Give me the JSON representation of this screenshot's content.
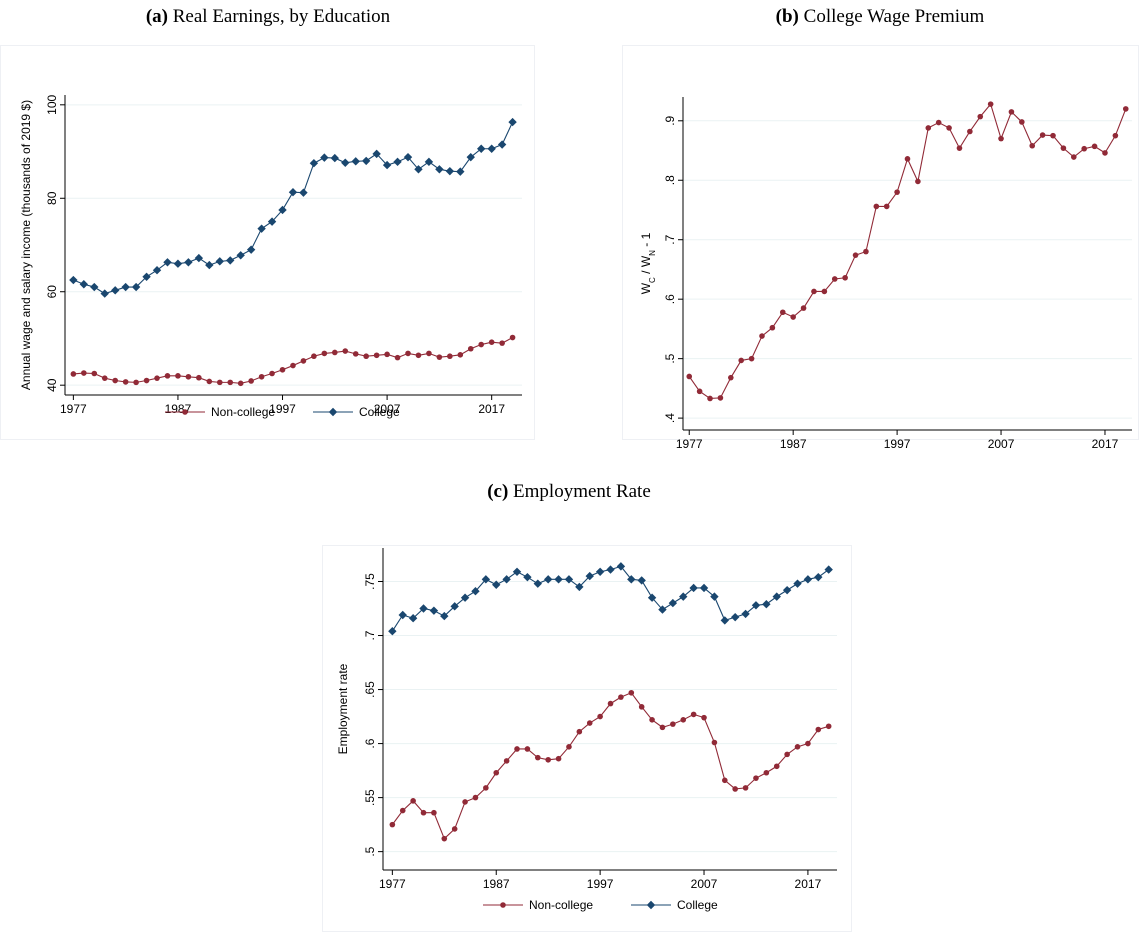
{
  "chart_data": [
    {
      "type": "line",
      "label": "(a)",
      "title": "Real Earnings, by Education",
      "ylabel": [
        "Annual wage and salary income (thousands of 2019 $)"
      ],
      "x": [
        1977,
        1978,
        1979,
        1980,
        1981,
        1982,
        1983,
        1984,
        1985,
        1986,
        1987,
        1988,
        1989,
        1990,
        1991,
        1992,
        1993,
        1994,
        1995,
        1996,
        1997,
        1998,
        1999,
        2000,
        2001,
        2002,
        2003,
        2004,
        2005,
        2006,
        2007,
        2008,
        2009,
        2010,
        2011,
        2012,
        2013,
        2014,
        2015,
        2016,
        2017,
        2018,
        2019
      ],
      "xlim": [
        1976.2,
        2019.9
      ],
      "xticks": [
        1977,
        1987,
        1997,
        2007,
        2017
      ],
      "ylim": [
        37.9,
        102.1
      ],
      "yticks": [
        40,
        60,
        80,
        100
      ],
      "grid": true,
      "legend": "bottom",
      "series": [
        {
          "name": "Non-college",
          "color": "#912a37",
          "marker": "circle",
          "values": [
            42.4,
            42.6,
            42.5,
            41.5,
            41.0,
            40.7,
            40.6,
            41.0,
            41.5,
            42.0,
            42.0,
            41.8,
            41.6,
            40.8,
            40.6,
            40.6,
            40.4,
            40.9,
            41.8,
            42.5,
            43.3,
            44.2,
            45.2,
            46.2,
            46.8,
            47.0,
            47.3,
            46.7,
            46.2,
            46.4,
            46.6,
            45.9,
            46.8,
            46.4,
            46.8,
            46.0,
            46.2,
            46.5,
            47.8,
            48.7,
            49.2,
            49.0,
            50.2
          ]
        },
        {
          "name": "College",
          "color": "#1a476f",
          "marker": "diamond",
          "values": [
            62.5,
            61.6,
            61.0,
            59.6,
            60.3,
            61.0,
            61.0,
            63.2,
            64.6,
            66.3,
            66.0,
            66.3,
            67.2,
            65.7,
            66.5,
            66.7,
            67.8,
            69.0,
            73.5,
            75.0,
            77.5,
            81.3,
            81.2,
            87.5,
            88.7,
            88.6,
            87.6,
            87.9,
            88.0,
            89.5,
            87.1,
            87.8,
            88.8,
            86.2,
            87.8,
            86.2,
            85.8,
            85.7,
            88.8,
            90.6,
            90.6,
            91.5,
            96.3
          ]
        }
      ]
    },
    {
      "type": "line",
      "label": "(b)",
      "title": "College Wage Premium",
      "ylabel": [
        "W",
        "C",
        " / W",
        "N",
        " - 1"
      ],
      "x": [
        1977,
        1978,
        1979,
        1980,
        1981,
        1982,
        1983,
        1984,
        1985,
        1986,
        1987,
        1988,
        1989,
        1990,
        1991,
        1992,
        1993,
        1994,
        1995,
        1996,
        1997,
        1998,
        1999,
        2000,
        2001,
        2002,
        2003,
        2004,
        2005,
        2006,
        2007,
        2008,
        2009,
        2010,
        2011,
        2012,
        2013,
        2014,
        2015,
        2016,
        2017,
        2018,
        2019
      ],
      "xlim": [
        1976.4,
        2019.6
      ],
      "xticks": [
        1977,
        1987,
        1997,
        2007,
        2017
      ],
      "ylim": [
        0.38,
        0.94
      ],
      "yticks": [
        {
          "value": 0.4,
          "label": ".4"
        },
        {
          "value": 0.5,
          "label": ".5"
        },
        {
          "value": 0.6,
          "label": ".6"
        },
        {
          "value": 0.7,
          "label": ".7"
        },
        {
          "value": 0.8,
          "label": ".8"
        },
        {
          "value": 0.9,
          "label": ".9"
        }
      ],
      "grid": true,
      "series": [
        {
          "color": "#912a37",
          "marker": "circle",
          "values": [
            0.47,
            0.445,
            0.433,
            0.434,
            0.468,
            0.497,
            0.5,
            0.538,
            0.552,
            0.578,
            0.57,
            0.585,
            0.613,
            0.613,
            0.634,
            0.636,
            0.674,
            0.68,
            0.756,
            0.756,
            0.78,
            0.836,
            0.798,
            0.888,
            0.897,
            0.888,
            0.854,
            0.882,
            0.907,
            0.928,
            0.87,
            0.915,
            0.898,
            0.858,
            0.876,
            0.875,
            0.854,
            0.839,
            0.853,
            0.857,
            0.846,
            0.875,
            0.92
          ]
        }
      ]
    },
    {
      "type": "line",
      "label": "(c)",
      "title": "Employment Rate",
      "ylabel": [
        "Employment rate"
      ],
      "x": [
        1977,
        1978,
        1979,
        1980,
        1981,
        1982,
        1983,
        1984,
        1985,
        1986,
        1987,
        1988,
        1989,
        1990,
        1991,
        1992,
        1993,
        1994,
        1995,
        1996,
        1997,
        1998,
        1999,
        2000,
        2001,
        2002,
        2003,
        2004,
        2005,
        2006,
        2007,
        2008,
        2009,
        2010,
        2011,
        2012,
        2013,
        2014,
        2015,
        2016,
        2017,
        2018,
        2019
      ],
      "xlim": [
        1976.1,
        2019.8
      ],
      "xticks": [
        1977,
        1987,
        1997,
        2007,
        2017
      ],
      "ylim": [
        0.483,
        0.781
      ],
      "yticks": [
        {
          "value": 0.5,
          "label": ".5"
        },
        {
          "value": 0.55,
          "label": ".55"
        },
        {
          "value": 0.6,
          "label": ".6"
        },
        {
          "value": 0.65,
          "label": ".65"
        },
        {
          "value": 0.7,
          "label": ".7"
        },
        {
          "value": 0.75,
          "label": ".75"
        }
      ],
      "grid": true,
      "legend": "bottom",
      "series": [
        {
          "name": "Non-college",
          "color": "#912a37",
          "marker": "circle",
          "values": [
            0.525,
            0.538,
            0.547,
            0.536,
            0.536,
            0.512,
            0.521,
            0.546,
            0.55,
            0.559,
            0.573,
            0.584,
            0.595,
            0.595,
            0.587,
            0.585,
            0.586,
            0.597,
            0.611,
            0.619,
            0.625,
            0.637,
            0.643,
            0.647,
            0.634,
            0.622,
            0.615,
            0.618,
            0.622,
            0.627,
            0.624,
            0.601,
            0.566,
            0.558,
            0.559,
            0.568,
            0.573,
            0.579,
            0.59,
            0.597,
            0.6,
            0.613,
            0.616
          ]
        },
        {
          "name": "College",
          "color": "#1a476f",
          "marker": "diamond",
          "values": [
            0.704,
            0.719,
            0.716,
            0.725,
            0.723,
            0.718,
            0.727,
            0.735,
            0.741,
            0.752,
            0.747,
            0.752,
            0.759,
            0.754,
            0.748,
            0.752,
            0.752,
            0.752,
            0.745,
            0.755,
            0.759,
            0.761,
            0.764,
            0.752,
            0.751,
            0.735,
            0.724,
            0.73,
            0.736,
            0.744,
            0.744,
            0.736,
            0.714,
            0.717,
            0.72,
            0.728,
            0.729,
            0.736,
            0.742,
            0.748,
            0.752,
            0.754,
            0.761
          ]
        }
      ]
    }
  ]
}
